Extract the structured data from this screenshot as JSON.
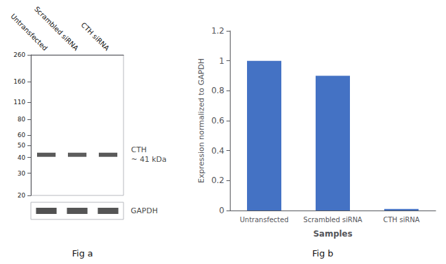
{
  "chart_data": [
    {
      "type": "blot",
      "title": "Fig a",
      "categories": [
        "Untransfected",
        "Scrambled siRNA",
        "CTH siRNA"
      ],
      "log": "y",
      "ylim": [
        20,
        260
      ],
      "yticks": [
        260,
        160,
        110,
        80,
        60,
        50,
        40,
        30,
        20
      ],
      "annotations": [
        "~ 41 kDa"
      ],
      "series": [
        {
          "name": "CTH",
          "values": [
            42,
            42,
            42
          ],
          "colors": [
            "#303030",
            "#353535",
            "#303030"
          ]
        },
        {
          "name": "GAPDH",
          "type": "strip",
          "colors": [
            "#252525",
            "#2a2a2a",
            "#2a2a2a"
          ]
        }
      ]
    },
    {
      "type": "bar",
      "title": "Fig b",
      "categories": [
        "Untransfected",
        "Scrambled siRNA",
        "CTH siRNA"
      ],
      "values": [
        1.0,
        0.9,
        0.01
      ],
      "color": "#4472c4",
      "xlabel": "Samples",
      "ylabel": "Expression normalized to GAPDH",
      "ylim": [
        0,
        1.2
      ],
      "yticks": [
        0,
        0.2,
        0.4,
        0.6,
        0.8,
        1.0,
        1.2
      ],
      "grid": false
    }
  ]
}
